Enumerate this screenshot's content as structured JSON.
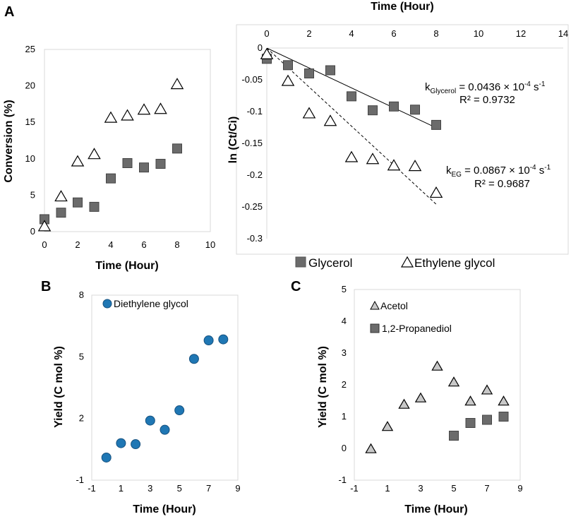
{
  "chart_data": [
    {
      "id": "A1",
      "panel_label": "A",
      "type": "scatter",
      "xlabel": "Time (Hour)",
      "ylabel": "Conversion (%)",
      "xlim": [
        0,
        10
      ],
      "ylim": [
        0,
        25
      ],
      "xticks": [
        "0",
        "2",
        "4",
        "6",
        "8",
        "10"
      ],
      "yticks": [
        "0",
        "5",
        "10",
        "15",
        "20",
        "25"
      ],
      "series": [
        {
          "name": "Glycerol",
          "marker": "square",
          "color": "#6b6b6b",
          "x": [
            0,
            1,
            2,
            3,
            4,
            5,
            6,
            7,
            8
          ],
          "y": [
            1.7,
            2.6,
            4.0,
            3.4,
            7.3,
            9.4,
            8.8,
            9.3,
            11.4
          ]
        },
        {
          "name": "Ethylene glycol",
          "marker": "triangle-open",
          "color": "#000000",
          "x": [
            0,
            1,
            2,
            3,
            4,
            5,
            6,
            7,
            8
          ],
          "y": [
            0.8,
            4.9,
            9.7,
            10.7,
            15.7,
            16.0,
            16.8,
            16.9,
            20.3
          ]
        }
      ]
    },
    {
      "id": "A2",
      "type": "scatter",
      "xlabel": "Time (Hour)",
      "ylabel": "ln (Ct/Ci)",
      "xlim": [
        0,
        14
      ],
      "ylim": [
        -0.3,
        0
      ],
      "xticks": [
        "0",
        "2",
        "4",
        "6",
        "8",
        "10",
        "12",
        "14"
      ],
      "yticks": [
        "0",
        "-0.05",
        "-0.1",
        "-0.15",
        "-0.2",
        "-0.25",
        "-0.3"
      ],
      "series": [
        {
          "name": "Glycerol",
          "marker": "square",
          "color": "#6b6b6b",
          "x": [
            0,
            1,
            2,
            3,
            4,
            5,
            6,
            7,
            8
          ],
          "y": [
            -0.017,
            -0.027,
            -0.04,
            -0.035,
            -0.076,
            -0.098,
            -0.092,
            -0.097,
            -0.121
          ],
          "fit": {
            "style": "solid",
            "from": [
              0,
              0
            ],
            "to": [
              8,
              -0.1255
            ]
          }
        },
        {
          "name": "Ethylene glycol",
          "marker": "triangle-open",
          "color": "#000000",
          "x": [
            0,
            1,
            2,
            3,
            4,
            5,
            6,
            7,
            8
          ],
          "y": [
            -0.009,
            -0.051,
            -0.102,
            -0.114,
            -0.171,
            -0.174,
            -0.184,
            -0.185,
            -0.227
          ],
          "fit": {
            "style": "dashed",
            "from": [
              0,
              0
            ],
            "to": [
              8,
              -0.2458
            ]
          }
        }
      ],
      "annotations": {
        "glycerol_k_prefix": "k",
        "glycerol_k_sub": "Glycerol",
        "glycerol_k_value": " = 0.0436 × 10",
        "glycerol_k_exp": "-4",
        "glycerol_k_unit": " s",
        "glycerol_k_unit_exp": "-1",
        "glycerol_r2": "R² = 0.9732",
        "eg_k_prefix": "k",
        "eg_k_sub": "EG",
        "eg_k_value": " = 0.0867 × 10",
        "eg_k_exp": "-4",
        "eg_k_unit": " s",
        "eg_k_unit_exp": "-1",
        "eg_r2": "R² = 0.9687"
      }
    },
    {
      "id": "B",
      "panel_label": "B",
      "type": "scatter",
      "xlabel": "Time (Hour)",
      "ylabel": "Yield (C mol %)",
      "xlim": [
        -1,
        9
      ],
      "ylim": [
        -1,
        8
      ],
      "xticks": [
        "-1",
        "1",
        "3",
        "5",
        "7",
        "9"
      ],
      "yticks": [
        "-1",
        "2",
        "5",
        "8"
      ],
      "legend": "top-left",
      "series": [
        {
          "name": "Diethylene glycol",
          "marker": "circle",
          "color": "#1f77b4",
          "x": [
            0,
            1,
            2,
            3,
            4,
            5,
            6,
            7,
            8
          ],
          "y": [
            0.1,
            0.8,
            0.75,
            1.9,
            1.45,
            2.4,
            4.9,
            5.8,
            5.85
          ]
        }
      ]
    },
    {
      "id": "C",
      "panel_label": "C",
      "type": "scatter",
      "xlabel": "Time (Hour)",
      "ylabel": "Yield (C mol %)",
      "xlim": [
        -1,
        9
      ],
      "ylim": [
        -1,
        5
      ],
      "xticks": [
        "-1",
        "1",
        "3",
        "5",
        "7",
        "9"
      ],
      "yticks": [
        "-1",
        "0",
        "1",
        "2",
        "3",
        "4",
        "5"
      ],
      "legend": "top-left",
      "series": [
        {
          "name": "Acetol",
          "marker": "triangle",
          "color": "#c8c8c8",
          "x": [
            0,
            1,
            2,
            3,
            4,
            5,
            6,
            7,
            8
          ],
          "y": [
            0.0,
            0.7,
            1.4,
            1.6,
            2.6,
            2.1,
            1.5,
            1.85,
            1.5
          ]
        },
        {
          "name": "1,2-Propanediol",
          "marker": "square",
          "color": "#6b6b6b",
          "x": [
            5,
            6,
            7,
            8
          ],
          "y": [
            0.4,
            0.8,
            0.9,
            1.0
          ]
        }
      ]
    }
  ]
}
